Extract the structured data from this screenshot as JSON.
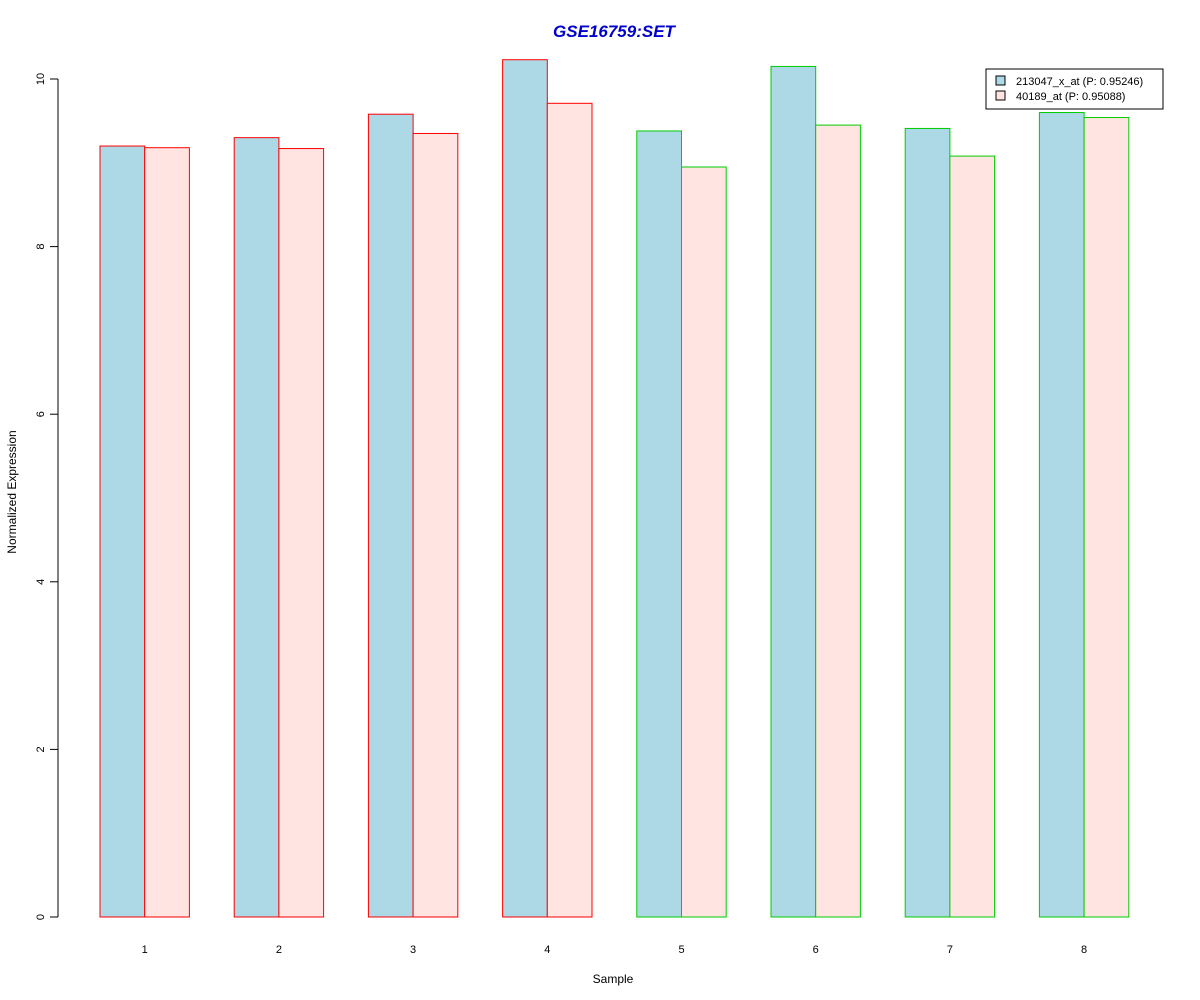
{
  "chart_data": {
    "type": "bar",
    "title": "GSE16759:SET",
    "title_color": "#0000CC",
    "xlabel": "Sample",
    "ylabel": "Normalized Expression",
    "ylim": [
      0,
      10.25
    ],
    "yticks": [
      0,
      2,
      4,
      6,
      8,
      10
    ],
    "categories": [
      "1",
      "2",
      "3",
      "4",
      "5",
      "6",
      "7",
      "8"
    ],
    "group_border_colors": [
      "#FF0000",
      "#FF0000",
      "#FF0000",
      "#FF0000",
      "#00CC00",
      "#00CC00",
      "#00CC00",
      "#00CC00"
    ],
    "series": [
      {
        "name": "213047_x_at (P: 0.95246)",
        "color": "#ADD8E6",
        "values": [
          9.2,
          9.3,
          9.58,
          10.23,
          9.38,
          10.15,
          9.41,
          9.6
        ]
      },
      {
        "name": "40189_at (P: 0.95088)",
        "color": "#FFE4E1",
        "values": [
          9.18,
          9.17,
          9.35,
          9.71,
          8.95,
          9.45,
          9.08,
          9.54
        ]
      }
    ],
    "legend_position": "top-right",
    "grid": false
  }
}
